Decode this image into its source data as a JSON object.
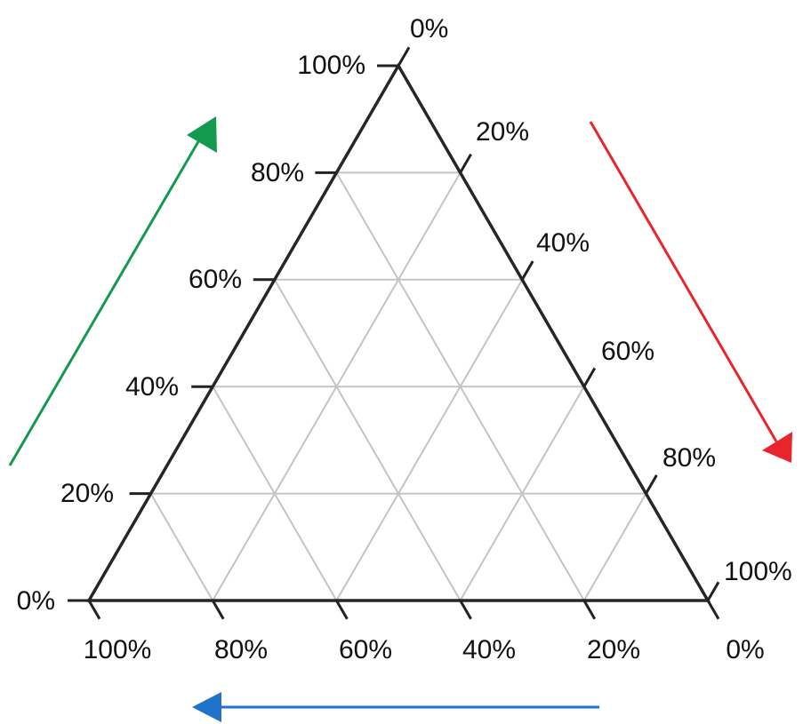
{
  "ternary": {
    "divisions": 5,
    "left_axis": {
      "tick_labels": [
        "0%",
        "20%",
        "40%",
        "60%",
        "80%",
        "100%"
      ],
      "arrow_color": "#139a50",
      "arrow_direction": "up"
    },
    "right_axis": {
      "tick_labels": [
        "0%",
        "20%",
        "40%",
        "60%",
        "80%",
        "100%"
      ],
      "arrow_color": "#e8252c",
      "arrow_direction": "down"
    },
    "bottom_axis": {
      "tick_labels": [
        "100%",
        "80%",
        "60%",
        "40%",
        "20%",
        "0%"
      ],
      "arrow_color": "#1f73c9",
      "arrow_direction": "left"
    },
    "grid_color": "#c4c4c4",
    "outline_color": "#262626"
  }
}
